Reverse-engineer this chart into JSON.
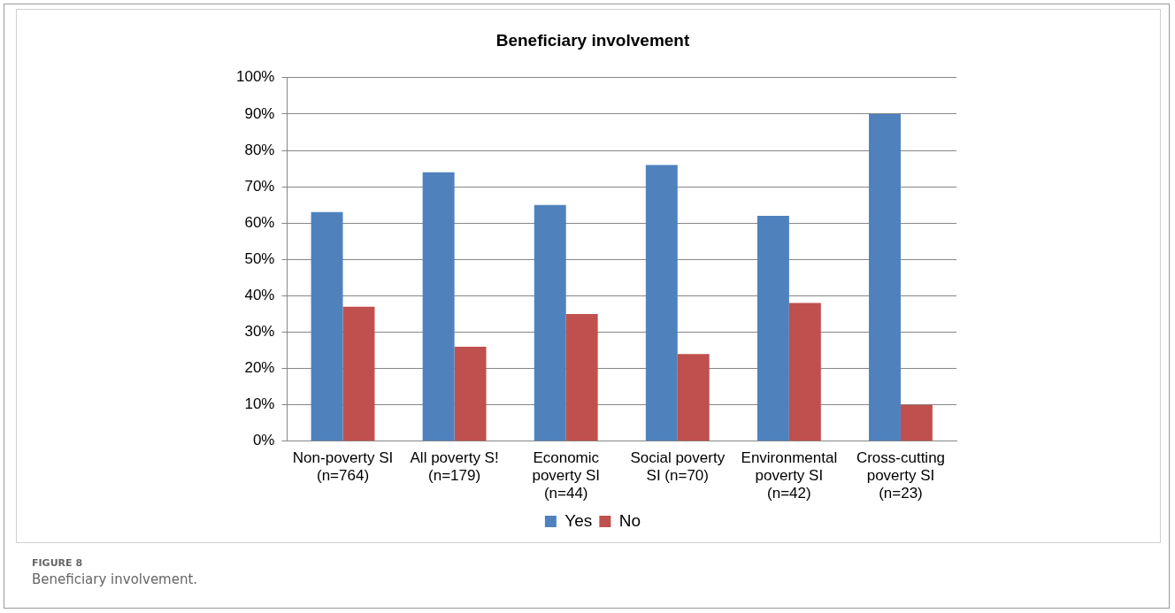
{
  "chart_data": {
    "type": "bar",
    "title": "Beneficiary involvement",
    "categories": [
      "Non-poverty SI (n=764)",
      "All poverty S! (n=179)",
      "Economic poverty SI (n=44)",
      "Social poverty SI (n=70)",
      "Environmental poverty SI (n=42)",
      "Cross-cutting poverty SI (n=23)"
    ],
    "series": [
      {
        "name": "Yes",
        "color": "#4f81bd",
        "values": [
          63,
          74,
          65,
          76,
          62,
          90
        ]
      },
      {
        "name": "No",
        "color": "#c0504d",
        "values": [
          37,
          26,
          35,
          24,
          38,
          10
        ]
      }
    ],
    "ylim": [
      0,
      100
    ],
    "yticks": [
      {
        "value": 0,
        "label": "0%"
      },
      {
        "value": 10,
        "label": "10%"
      },
      {
        "value": 20,
        "label": "20%"
      },
      {
        "value": 30,
        "label": "30%"
      },
      {
        "value": 40,
        "label": "40%"
      },
      {
        "value": 50,
        "label": "50%"
      },
      {
        "value": 60,
        "label": "60%"
      },
      {
        "value": 70,
        "label": "70%"
      },
      {
        "value": 80,
        "label": "80%"
      },
      {
        "value": 90,
        "label": "90%"
      },
      {
        "value": 100,
        "label": "100%"
      }
    ],
    "grid": "y",
    "legend": "bottom",
    "annotations": [
      "FIGURE 8",
      "Beneficiary involvement."
    ]
  }
}
